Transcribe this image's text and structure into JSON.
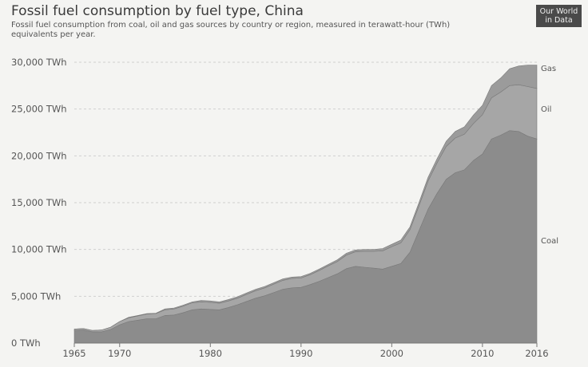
{
  "header": {
    "title": "Fossil fuel consumption by fuel type, China",
    "subtitle": "Fossil fuel consumption from coal, oil and gas sources by country or region, measured in terawatt-hour (TWh) equivalents per year.",
    "logo_line1": "Our World",
    "logo_line2": "in Data"
  },
  "colors": {
    "coal": "#8c8c8c",
    "oil": "#a6a6a6",
    "gas": "#9b9b9b",
    "gridline": "#cfcfcf"
  },
  "chart_data": {
    "type": "area",
    "stacked": true,
    "title": "Fossil fuel consumption by fuel type, China",
    "xlim": [
      1965,
      2016
    ],
    "ylim": [
      0,
      30000
    ],
    "x_ticks": [
      1965,
      1970,
      1980,
      1990,
      2000,
      2010,
      2016
    ],
    "x_tick_labels": [
      "1965",
      "1970",
      "1980",
      "1990",
      "2000",
      "2010",
      "2016"
    ],
    "y_ticks": [
      0,
      5000,
      10000,
      15000,
      20000,
      25000,
      30000
    ],
    "y_tick_labels": [
      "0 TWh",
      "5,000 TWh",
      "10,000 TWh",
      "15,000 TWh",
      "20,000 TWh",
      "25,000 TWh",
      "30,000 TWh"
    ],
    "grid": true,
    "x": [
      1965,
      1966,
      1967,
      1968,
      1969,
      1970,
      1971,
      1972,
      1973,
      1974,
      1975,
      1976,
      1977,
      1978,
      1979,
      1980,
      1981,
      1982,
      1983,
      1984,
      1985,
      1986,
      1987,
      1988,
      1989,
      1990,
      1991,
      1992,
      1993,
      1994,
      1995,
      1996,
      1997,
      1998,
      1999,
      2000,
      2001,
      2002,
      2003,
      2004,
      2005,
      2006,
      2007,
      2008,
      2009,
      2010,
      2011,
      2012,
      2013,
      2014,
      2015,
      2016
    ],
    "series": [
      {
        "name": "Coal",
        "values": [
          1350,
          1400,
          1200,
          1200,
          1450,
          1950,
          2300,
          2450,
          2600,
          2600,
          2950,
          3000,
          3250,
          3550,
          3650,
          3600,
          3550,
          3800,
          4100,
          4450,
          4800,
          5050,
          5400,
          5750,
          5900,
          5950,
          6250,
          6600,
          7000,
          7400,
          7950,
          8200,
          8100,
          8000,
          7900,
          8200,
          8500,
          9700,
          12000,
          14300,
          16000,
          17500,
          18200,
          18500,
          19500,
          20200,
          21800,
          22200,
          22700,
          22600,
          22100,
          21800
        ]
      },
      {
        "name": "Oil",
        "values": [
          150,
          150,
          150,
          200,
          250,
          350,
          400,
          450,
          500,
          550,
          600,
          650,
          700,
          750,
          750,
          750,
          700,
          700,
          700,
          750,
          800,
          850,
          900,
          950,
          1000,
          1000,
          1050,
          1150,
          1250,
          1300,
          1450,
          1550,
          1700,
          1800,
          1950,
          2100,
          2200,
          2400,
          2650,
          3000,
          3250,
          3500,
          3700,
          3800,
          3950,
          4200,
          4400,
          4600,
          4800,
          5000,
          5300,
          5400
        ]
      },
      {
        "name": "Gas",
        "values": [
          0,
          0,
          0,
          0,
          0,
          0,
          50,
          50,
          50,
          50,
          100,
          100,
          100,
          100,
          150,
          150,
          150,
          150,
          150,
          150,
          150,
          150,
          150,
          150,
          150,
          150,
          150,
          150,
          150,
          200,
          200,
          200,
          200,
          200,
          250,
          250,
          300,
          300,
          350,
          400,
          450,
          550,
          700,
          800,
          900,
          1000,
          1300,
          1500,
          1800,
          2000,
          2300,
          2500
        ]
      }
    ]
  }
}
